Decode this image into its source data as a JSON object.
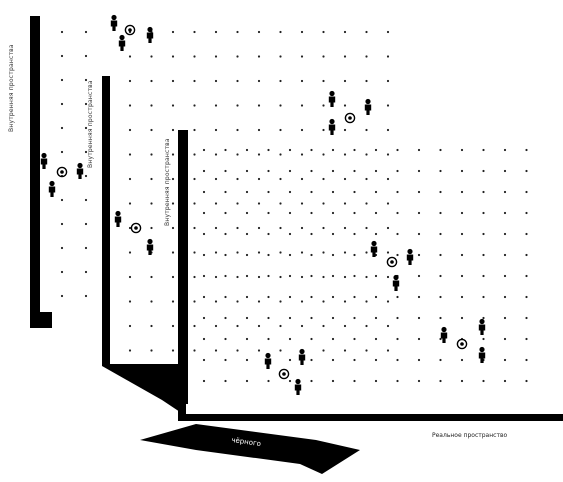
{
  "labels": {
    "axis_1": "Внутренняя пространства",
    "axis_2": "Внутренняя пространства",
    "axis_3": "Внутренняя пространства",
    "horizontal_axis": "Реальное пространство",
    "arrow": "чёрного"
  },
  "icons": {
    "person": "person-icon",
    "circle": "circle-target-icon"
  },
  "colors": {
    "ink": "#000000",
    "dot": "#222222",
    "background": "#ffffff"
  }
}
